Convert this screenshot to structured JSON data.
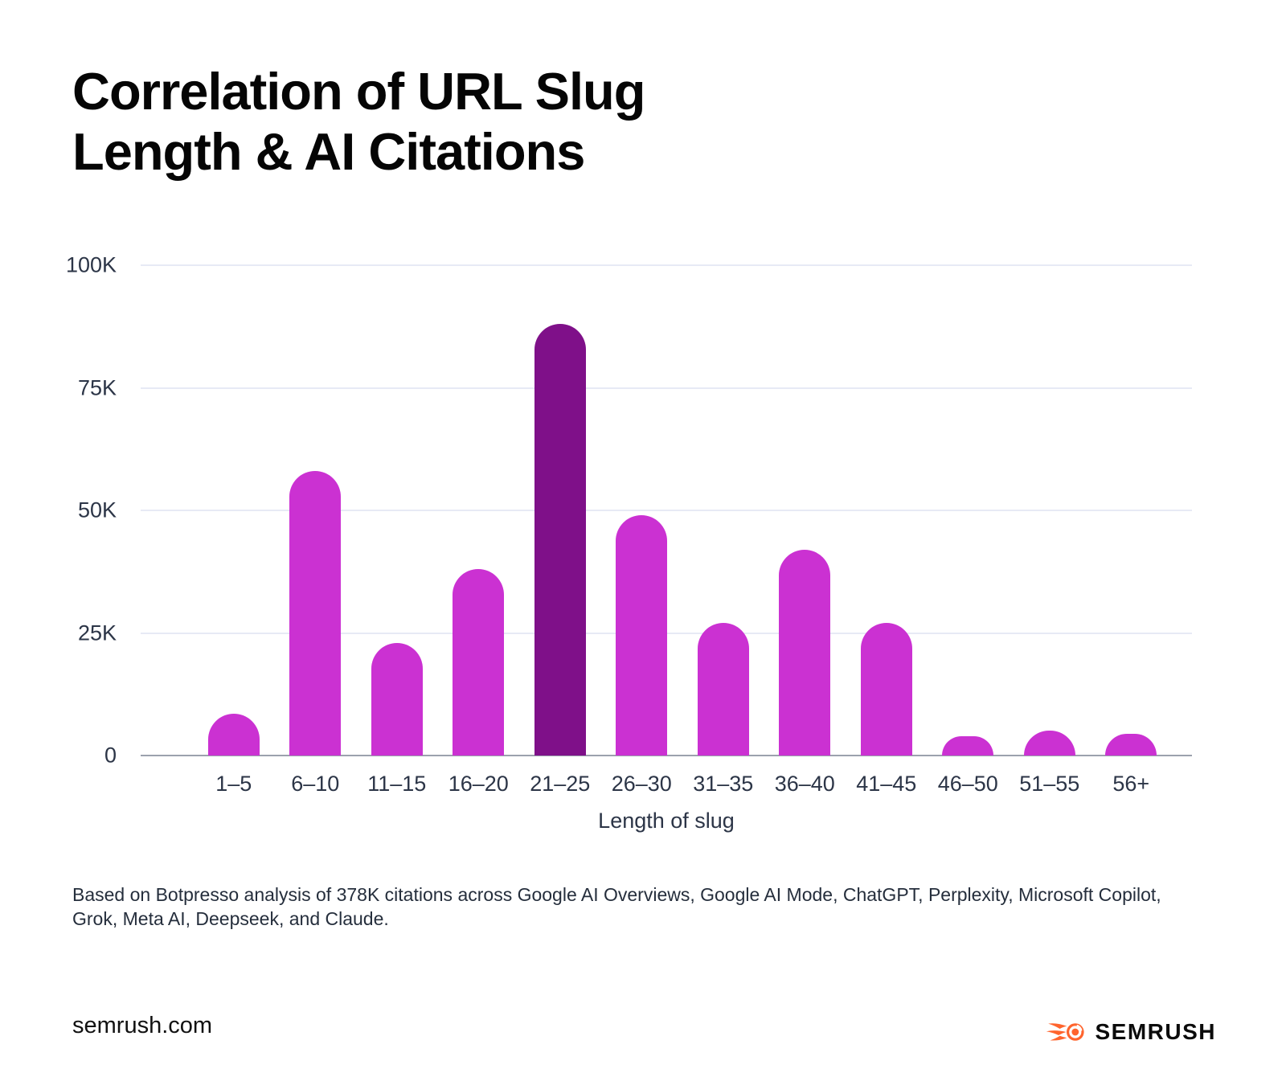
{
  "title": {
    "line1": "Correlation of URL Slug",
    "line2": "Length & AI Citations"
  },
  "chart_data": {
    "type": "bar",
    "title": "Correlation of URL Slug Length & AI Citations",
    "categories": [
      "1–5",
      "6–10",
      "11–15",
      "16–20",
      "21–25",
      "26–30",
      "31–35",
      "36–40",
      "41–45",
      "46–50",
      "51–55",
      "56+"
    ],
    "values": [
      8500,
      58000,
      23000,
      38000,
      88000,
      49000,
      27000,
      42000,
      27000,
      4000,
      5000,
      4500
    ],
    "highlight_index": 4,
    "xlabel": "Length of slug",
    "ylabel": "",
    "ylim": [
      0,
      100000
    ],
    "yticks": [
      "100K",
      "75K",
      "50K",
      "25K",
      "0"
    ],
    "grid": true,
    "legend": false,
    "bar_color": "#CB31D2",
    "highlight_color": "#7F1089"
  },
  "footnote": {
    "line1": "Based on Botpresso analysis of 378K citations across Google AI Overviews, Google AI Mode, ChatGPT, Perplexity, Microsoft Copilot,",
    "line2": "Grok, Meta AI, Deepseek, and Claude."
  },
  "footer": {
    "site": "semrush.com",
    "brand": "SEMRUSH",
    "brand_color": "#FF642D"
  }
}
